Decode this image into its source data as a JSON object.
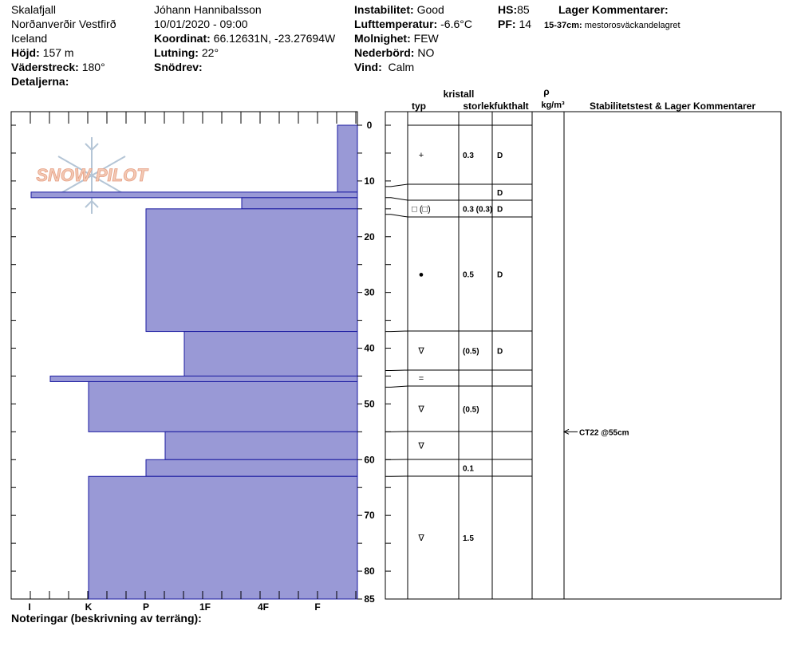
{
  "header": {
    "location": "Skalafjall",
    "region": "Norðanverðir Vestfirð",
    "country": "Iceland",
    "hojd_label": "Höjd:",
    "hojd_value": "157 m",
    "vaderstreck_label": "Väderstreck:",
    "vaderstreck_value": "180°",
    "detaljerna_label": "Detaljerna:",
    "observer": "Jóhann Hannibalsson",
    "datetime": "10/01/2020 - 09:00",
    "koordinat_label": "Koordinat:",
    "koordinat_value": "66.12631N, -23.27694W",
    "lutning_label": "Lutning:",
    "lutning_value": "22°",
    "snodrev_label": "Snödrev:",
    "instabilitet_label": "Instabilitet:",
    "instabilitet_value": "Good",
    "lufttemp_label": "Lufttemperatur:",
    "lufttemp_value": "-6.6°C",
    "molnighet_label": "Molnighet:",
    "molnighet_value": "FEW",
    "nederbord_label": "Nederbörd:",
    "nederbord_value": "NO",
    "vind_label": "Vind:",
    "vind_value": "Calm",
    "hs_label": "HS:",
    "hs_value": "85",
    "pf_label": "PF:",
    "pf_value": "14",
    "lager_title": "Lager Kommentarer:",
    "lager_comment_range": "15-37cm:",
    "lager_comment_text": "mestorosväckandelagret"
  },
  "watermark": {
    "text": "SNOW PILOT",
    "color": "#e8a080"
  },
  "footer": {
    "noteringar": "Noteringar (beskrivning av terräng):"
  },
  "table_headers": {
    "kristall": "kristall",
    "typ": "typ",
    "storlek": "storlek",
    "fukthalt": "fukthalt",
    "rho": "ρ",
    "density_unit": "kg/m³",
    "stability": "Stabilitetstest & Lager Kommentarer"
  },
  "chart_data": {
    "type": "bar",
    "orientation": "horizontal",
    "title": "",
    "xlabel": "",
    "ylabel": "",
    "colors": {
      "fill": "#9999d6",
      "edge": "#1a1aa0"
    },
    "x_categories": [
      "I",
      "K",
      "P",
      "1F",
      "4F",
      "F"
    ],
    "y_ticks": [
      0,
      10,
      20,
      30,
      40,
      50,
      60,
      70,
      80,
      85
    ],
    "ylim": [
      0,
      85
    ],
    "layers": [
      {
        "top": 0,
        "bottom": 12,
        "hardness": "F-"
      },
      {
        "top": 12,
        "bottom": 13,
        "hardness": "I"
      },
      {
        "top": 13,
        "bottom": 15,
        "hardness": "4F"
      },
      {
        "top": 15,
        "bottom": 37,
        "hardness": "P"
      },
      {
        "top": 37,
        "bottom": 45,
        "hardness": "1F+"
      },
      {
        "top": 45,
        "bottom": 46,
        "hardness": "K+"
      },
      {
        "top": 46,
        "bottom": 55,
        "hardness": "K"
      },
      {
        "top": 55,
        "bottom": 60,
        "hardness": "P-1F"
      },
      {
        "top": 60,
        "bottom": 63,
        "hardness": "P"
      },
      {
        "top": 63,
        "bottom": 85,
        "hardness": "K"
      }
    ],
    "table_rows": [
      {
        "top": 0,
        "bottom": 11,
        "typ": "+",
        "storlek": "0.3",
        "fukthalt": "D"
      },
      {
        "top": 11,
        "bottom": 13,
        "typ": "",
        "storlek": "",
        "fukthalt": "D"
      },
      {
        "top": 13,
        "bottom": 16,
        "typ": "□ (□)",
        "storlek": "0.3 (0.3)",
        "fukthalt": "D"
      },
      {
        "top": 16,
        "bottom": 37,
        "typ": "●",
        "storlek": "0.5",
        "fukthalt": "D"
      },
      {
        "top": 37,
        "bottom": 44,
        "typ": "∇",
        "storlek": "(0.5)",
        "fukthalt": "D"
      },
      {
        "top": 44,
        "bottom": 47,
        "typ": "=",
        "storlek": "",
        "fukthalt": ""
      },
      {
        "top": 47,
        "bottom": 55,
        "typ": "∇",
        "storlek": "(0.5)",
        "fukthalt": ""
      },
      {
        "top": 55,
        "bottom": 60,
        "typ": "∇",
        "storlek": "",
        "fukthalt": ""
      },
      {
        "top": 60,
        "bottom": 63,
        "typ": "",
        "storlek": "0.1",
        "fukthalt": ""
      },
      {
        "top": 63,
        "bottom": 85,
        "typ": "∇",
        "storlek": "1.5",
        "fukthalt": ""
      }
    ],
    "stability_tests": [
      {
        "depth": 55,
        "label": "CT22 @55cm"
      }
    ]
  }
}
